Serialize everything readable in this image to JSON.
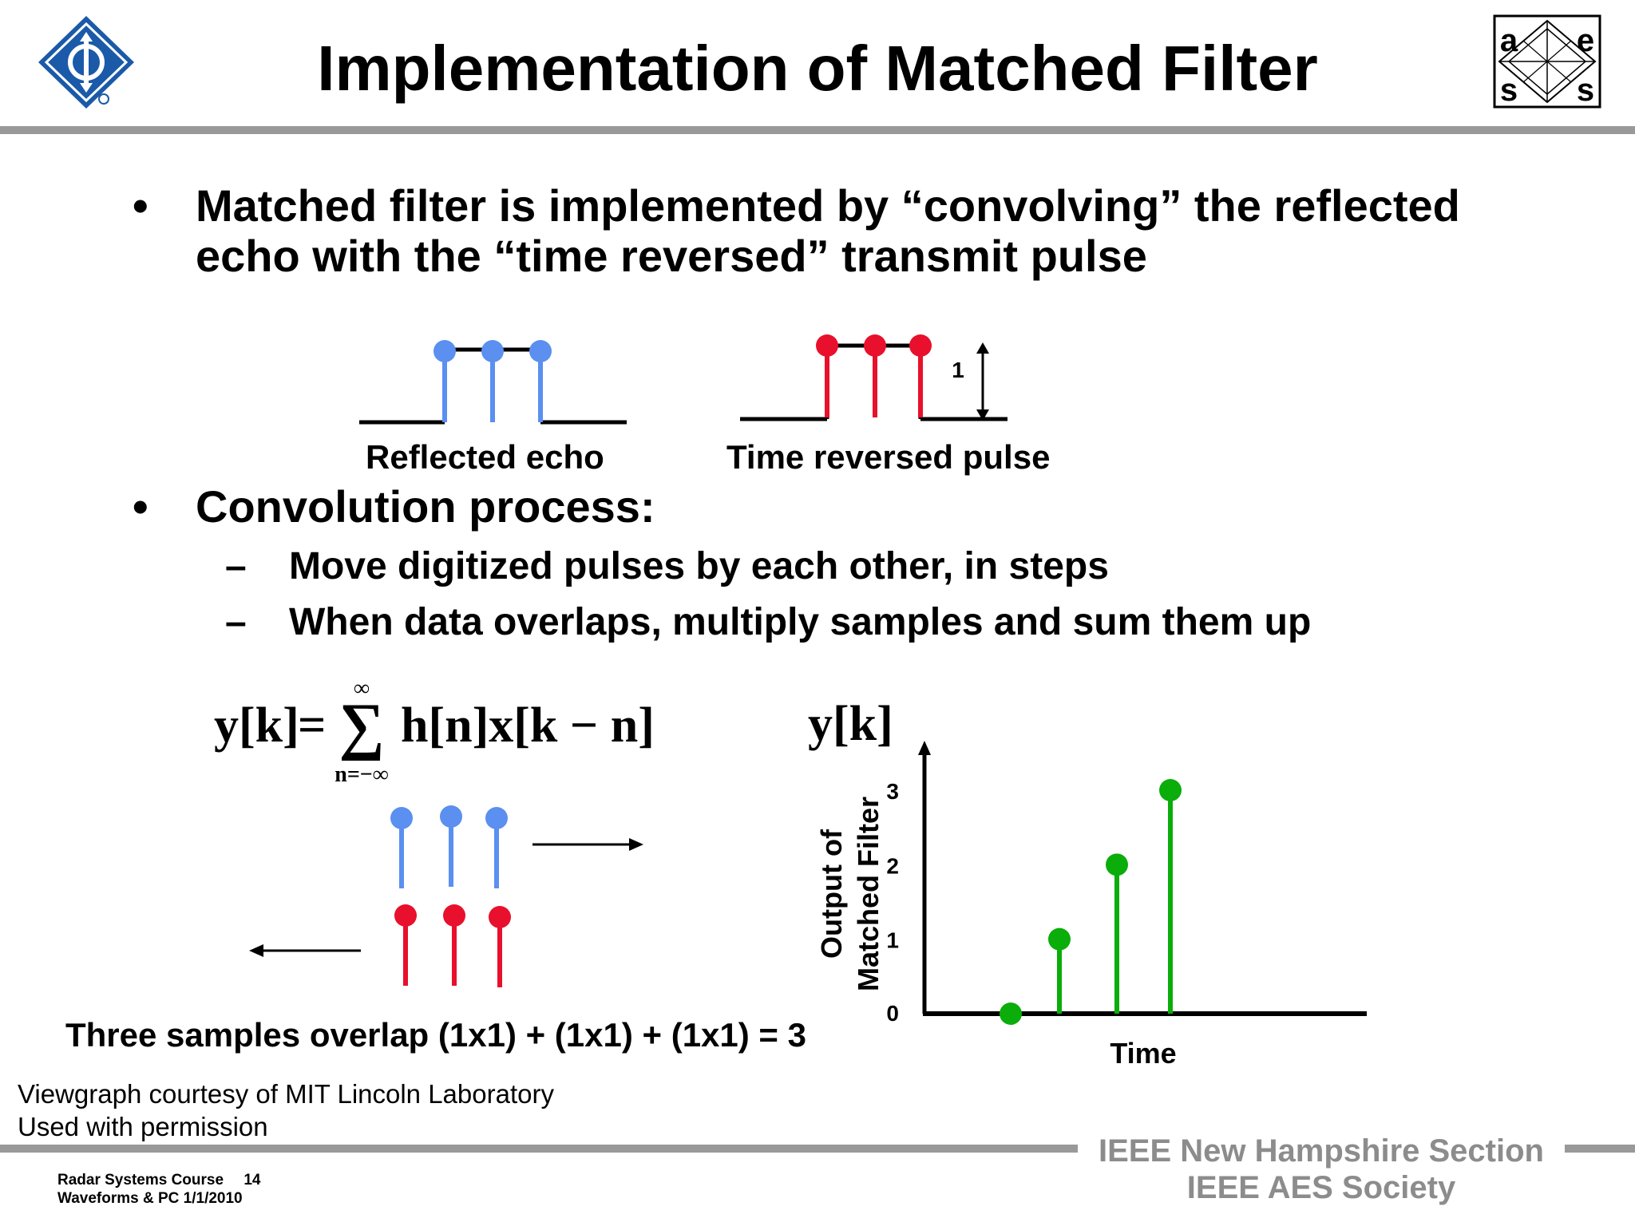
{
  "title": "Implementation of Matched Filter",
  "logos": {
    "left": {
      "icon": "ieee-diamond-logo",
      "color": "#1a5aa8"
    },
    "right": {
      "icon": "aess-logo",
      "letters": [
        "a",
        "e",
        "s",
        "s"
      ]
    }
  },
  "bullets": [
    {
      "lines": [
        "Matched filter is implemented by “convolving” the reflected",
        "echo with the “time reversed” transmit pulse"
      ]
    },
    {
      "lines": [
        "Convolution process:"
      ],
      "subitems": [
        "Move digitized pulses by  each other, in steps",
        "When data overlaps, multiply samples and sum them up"
      ]
    }
  ],
  "bullet_symbol": "•",
  "dash_symbol": "–",
  "pulses": {
    "reflected_label": "Reflected echo",
    "reversed_label": "Time reversed pulse",
    "amplitude_label": "1",
    "echo_color": "#5b8ff0",
    "pulse_color": "#e8102c"
  },
  "formula": {
    "lhs": "y[k]",
    "equals": "=",
    "sum_upper": "∞",
    "sum_lower": "n=−∞",
    "sum_symbol": "∑",
    "rhs": "h[n]x[k − n]"
  },
  "overlap_text": "Three samples overlap (1x1) + (1x1) + (1x1) = 3",
  "chart_data": {
    "type": "stem",
    "title": "y[k]",
    "ylabel_lines": [
      "Output of",
      "Matched Filter"
    ],
    "xlabel": "Time",
    "yticks": [
      0,
      1,
      2,
      3
    ],
    "ylim": [
      0,
      3
    ],
    "values": [
      0,
      1,
      2,
      3
    ],
    "grid": false,
    "color": "#0aad0a"
  },
  "credit": [
    "Viewgraph courtesy of MIT Lincoln Laboratory",
    "Used with permission"
  ],
  "footer": {
    "course": "Radar Systems Course",
    "page": "14",
    "subtitle": "Waveforms & PC  1/1/2010",
    "org_lines": [
      "IEEE New Hampshire Section",
      "IEEE AES Society"
    ]
  }
}
